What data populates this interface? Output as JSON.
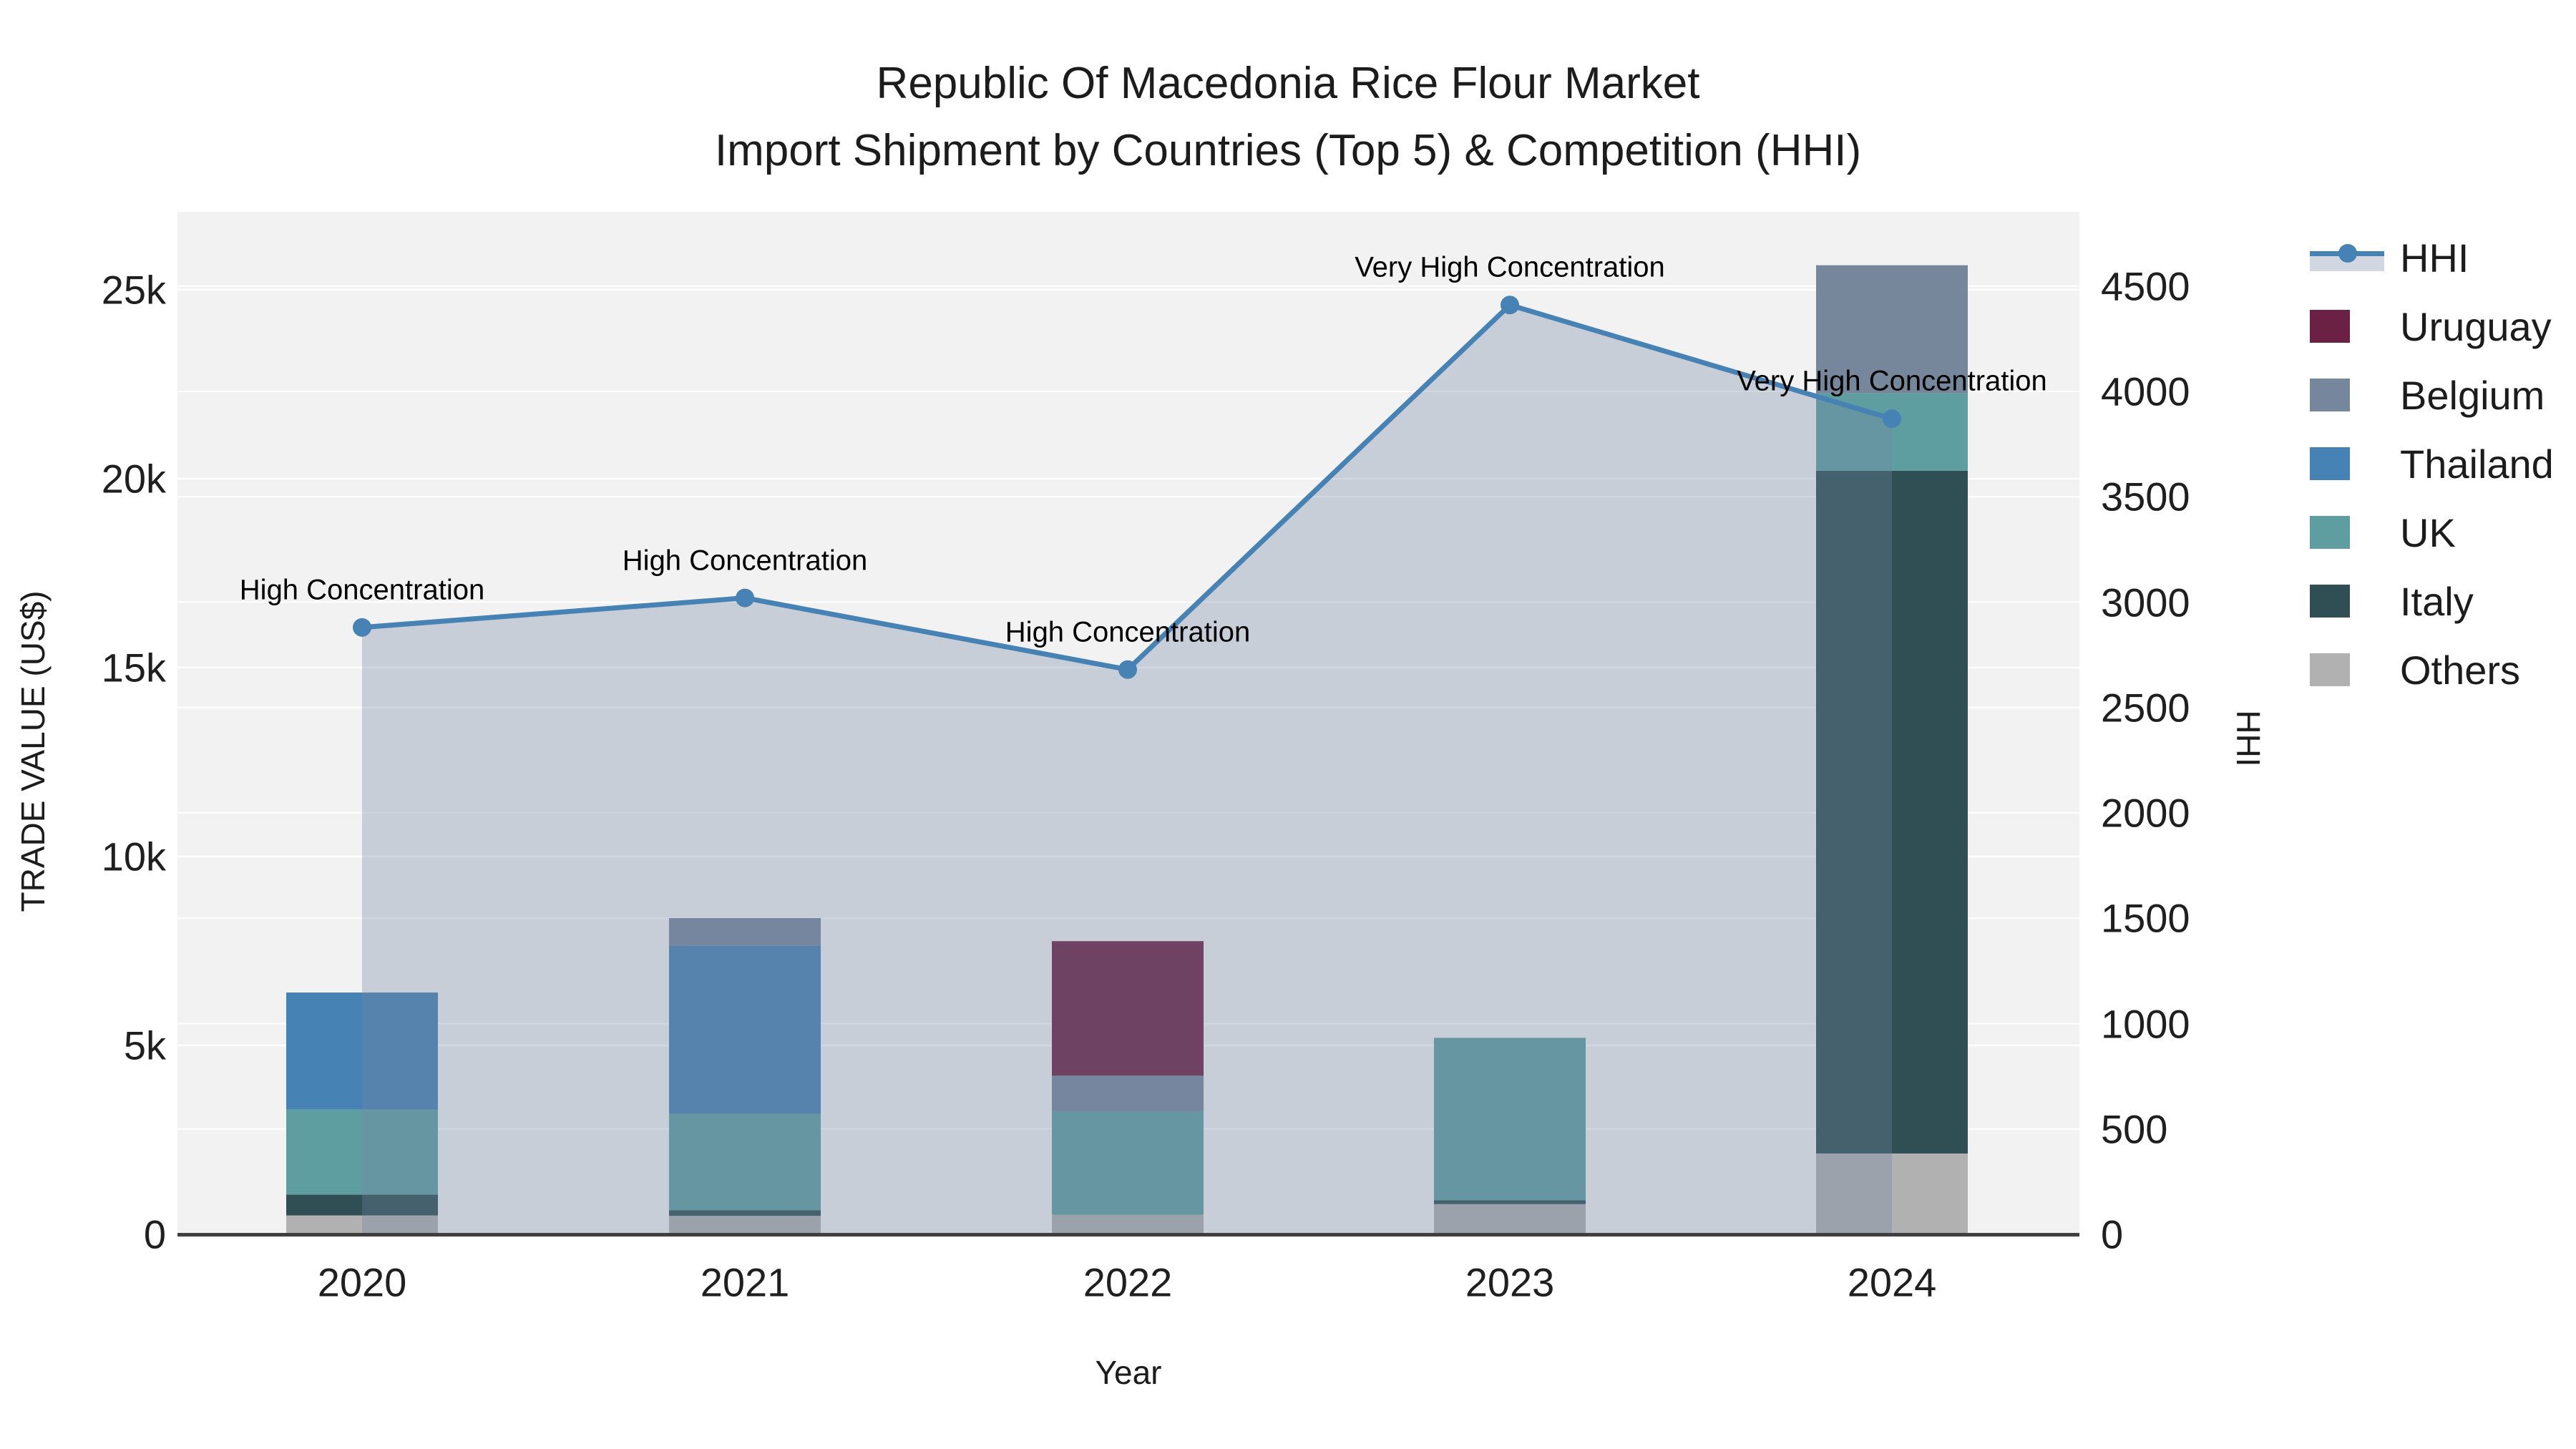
{
  "title": {
    "line1": "Republic Of Macedonia Rice Flour Market",
    "line2": "Import Shipment by Countries (Top 5) & Competition (HHI)"
  },
  "axes": {
    "x": {
      "label": "Year",
      "categories": [
        "2020",
        "2021",
        "2022",
        "2023",
        "2024"
      ]
    },
    "left": {
      "label": "TRADE VALUE (US$)",
      "ticks": [
        {
          "value": 0,
          "label": "0"
        },
        {
          "value": 5000,
          "label": "5k"
        },
        {
          "value": 10000,
          "label": "10k"
        },
        {
          "value": 15000,
          "label": "15k"
        },
        {
          "value": 20000,
          "label": "20k"
        },
        {
          "value": 25000,
          "label": "25k"
        }
      ]
    },
    "right": {
      "label": "HHI",
      "ticks": [
        {
          "value": 0,
          "label": "0"
        },
        {
          "value": 500,
          "label": "500"
        },
        {
          "value": 1000,
          "label": "1000"
        },
        {
          "value": 1500,
          "label": "1500"
        },
        {
          "value": 2000,
          "label": "2000"
        },
        {
          "value": 2500,
          "label": "2500"
        },
        {
          "value": 3000,
          "label": "3000"
        },
        {
          "value": 3500,
          "label": "3500"
        },
        {
          "value": 4000,
          "label": "4000"
        },
        {
          "value": 4500,
          "label": "4500"
        }
      ]
    }
  },
  "legend": {
    "items": [
      {
        "label": "HHI",
        "symbol": "line-marker",
        "color": "#4682b4"
      },
      {
        "label": "Uruguay",
        "symbol": "swatch",
        "color": "#6b2144"
      },
      {
        "label": "Belgium",
        "symbol": "swatch",
        "color": "#76879c"
      },
      {
        "label": "Thailand",
        "symbol": "swatch",
        "color": "#4682b4"
      },
      {
        "label": "UK",
        "symbol": "swatch",
        "color": "#5f9ea0"
      },
      {
        "label": "Italy",
        "symbol": "swatch",
        "color": "#2f4f54"
      },
      {
        "label": "Others",
        "symbol": "swatch",
        "color": "#b1b1b1"
      }
    ]
  },
  "chart_data": {
    "type": "bar",
    "subtype": "stacked-bars-with-line-on-secondary-axis",
    "title": "Republic Of Macedonia Rice Flour Market — Import Shipment by Countries (Top 5) & Competition (HHI)",
    "xlabel": "Year",
    "ylabel_left": "TRADE VALUE (US$)",
    "ylabel_right": "HHI",
    "categories": [
      "2020",
      "2021",
      "2022",
      "2023",
      "2024"
    ],
    "stack_order_bottom_to_top": [
      "Others",
      "Italy",
      "UK",
      "Thailand",
      "Belgium",
      "Uruguay"
    ],
    "series": [
      {
        "name": "Others",
        "color": "#b1b1b1",
        "values": [
          500,
          490,
          520,
          800,
          2140
        ]
      },
      {
        "name": "Italy",
        "color": "#2f4f54",
        "values": [
          550,
          150,
          0,
          100,
          18070
        ]
      },
      {
        "name": "UK",
        "color": "#5f9ea0",
        "values": [
          2250,
          2550,
          2730,
          4300,
          2050
        ]
      },
      {
        "name": "Thailand",
        "color": "#4682b4",
        "values": [
          3100,
          4450,
          0,
          0,
          0
        ]
      },
      {
        "name": "Belgium",
        "color": "#76879c",
        "values": [
          0,
          730,
          950,
          0,
          3390
        ]
      },
      {
        "name": "Uruguay",
        "color": "#6b2144",
        "values": [
          0,
          0,
          3560,
          0,
          0
        ]
      }
    ],
    "bar_totals": [
      6400,
      8370,
      7760,
      5200,
      25650
    ],
    "line_series": {
      "name": "HHI",
      "axis": "right",
      "color": "#4682b4",
      "area_fill": "rgba(115,135,165,0.33)",
      "values": [
        2880,
        3020,
        2680,
        4410,
        3870
      ]
    },
    "annotations": [
      {
        "category": "2020",
        "text": "High Concentration"
      },
      {
        "category": "2021",
        "text": "High Concentration"
      },
      {
        "category": "2022",
        "text": "High Concentration"
      },
      {
        "category": "2023",
        "text": "Very High Concentration"
      },
      {
        "category": "2024",
        "text": "Very High Concentration"
      }
    ],
    "left_ylim": [
      0,
      27100
    ],
    "right_ylim": [
      0,
      4850
    ],
    "grid": true,
    "legend_position": "top-right-outside"
  },
  "colors": {
    "plot_bg": "#f2f2f2",
    "grid": "#ffffff",
    "axis_line": "#3f3f3f",
    "text": "#1c1c1c"
  }
}
